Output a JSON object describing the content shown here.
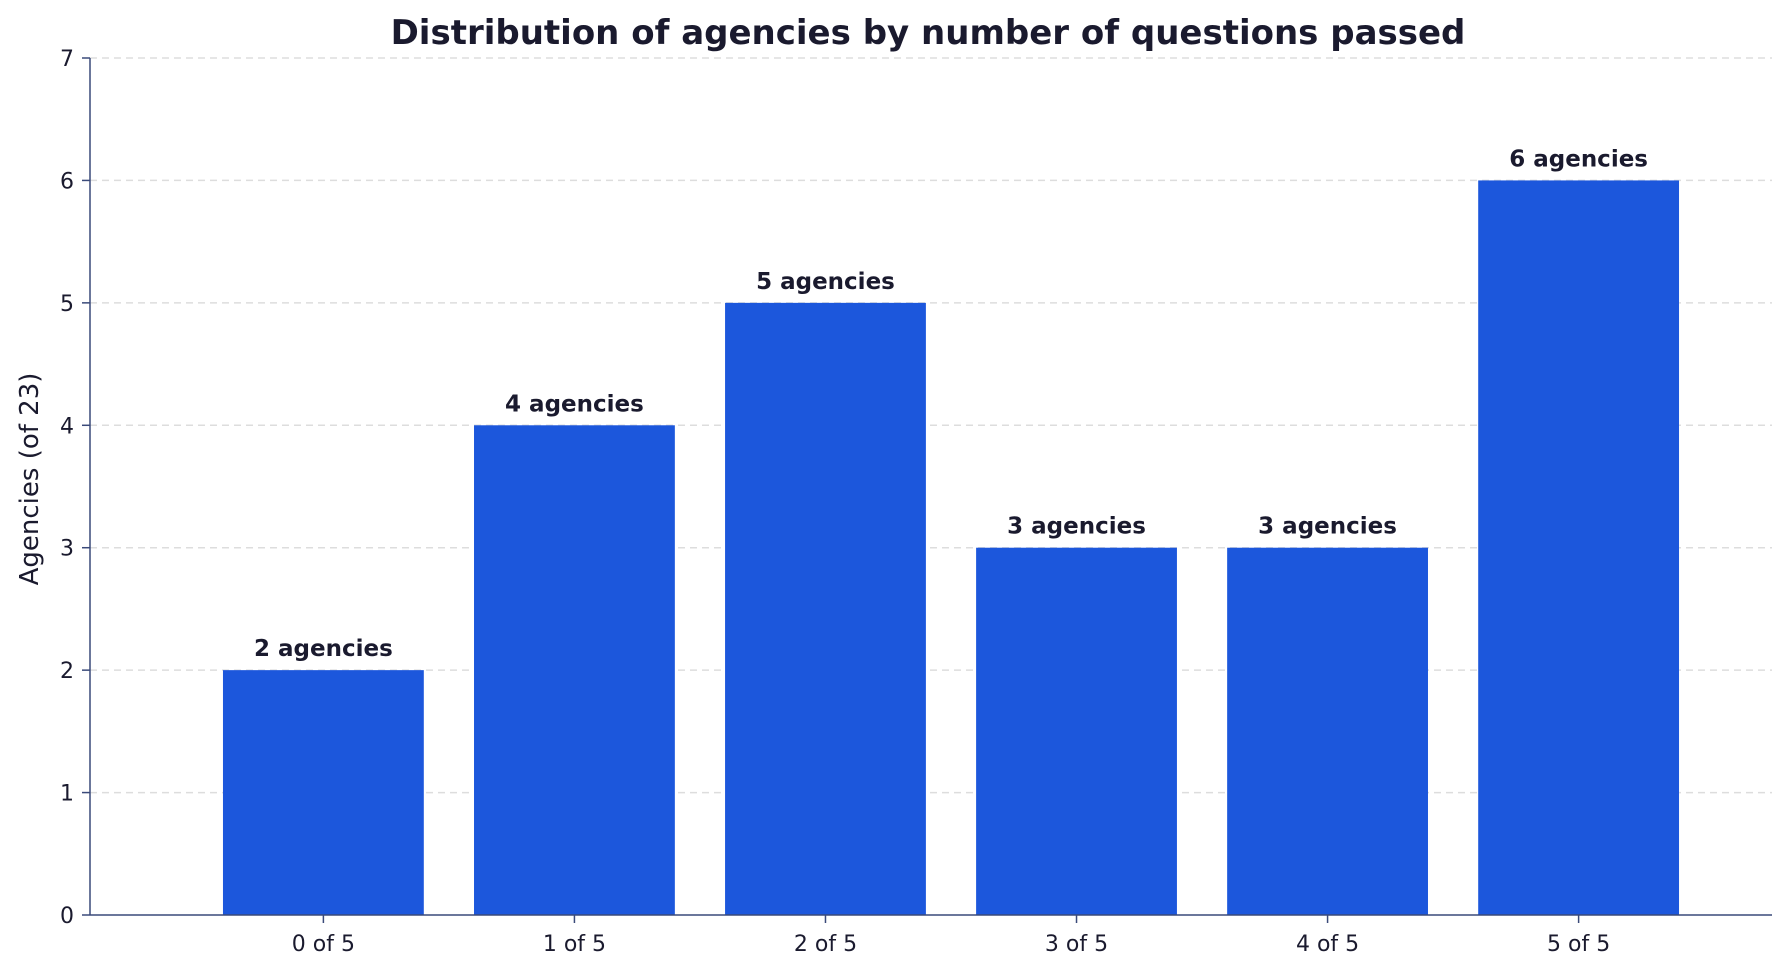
{
  "colors": {
    "bar": "#1c57dc",
    "text": "#1a1a2e",
    "axis": "#3a4a7a",
    "grid": "#dddddd",
    "background": "#ffffff"
  },
  "chart_data": {
    "type": "bar",
    "title": "Distribution of agencies by number of questions passed",
    "xlabel": "",
    "ylabel": "Agencies (of 23)",
    "categories": [
      "0 of 5",
      "1 of 5",
      "2 of 5",
      "3 of 5",
      "4 of 5",
      "5 of 5"
    ],
    "values": [
      2,
      4,
      5,
      3,
      3,
      6
    ],
    "data_labels": [
      "2 agencies",
      "4 agencies",
      "5 agencies",
      "3 agencies",
      "3 agencies",
      "6 agencies"
    ],
    "ylim": [
      0,
      7
    ],
    "yticks": [
      "0",
      "1",
      "2",
      "3",
      "4",
      "5",
      "6",
      "7"
    ],
    "grid": true,
    "grid_axis": "y",
    "grid_style": "dashed",
    "legend": "none"
  }
}
